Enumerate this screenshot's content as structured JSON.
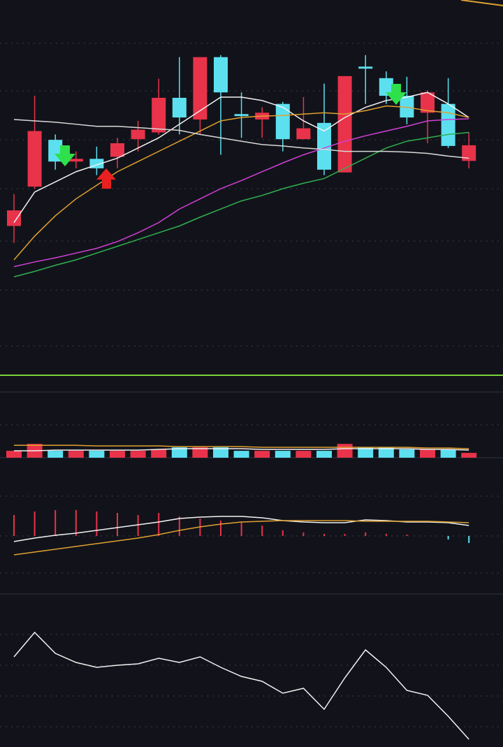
{
  "chart_data": [
    {
      "type": "candlestick",
      "ylim": [
        0,
        540
      ],
      "up_color": "#e8334a",
      "down_color": "#5ce0f0",
      "open": [
        215,
        273,
        342,
        310,
        314,
        317,
        343,
        353,
        404,
        372,
        464,
        380,
        372,
        395,
        343,
        367,
        294,
        450,
        433,
        407,
        382,
        395,
        311
      ],
      "high": [
        262,
        407,
        350,
        325,
        332,
        345,
        370,
        432,
        464,
        464,
        467,
        412,
        390,
        398,
        405,
        425,
        436,
        467,
        443,
        435,
        415,
        433,
        353
      ],
      "low": [
        190,
        270,
        298,
        300,
        290,
        300,
        325,
        350,
        350,
        350,
        320,
        345,
        345,
        325,
        343,
        290,
        294,
        395,
        395,
        365,
        337,
        330,
        300
      ],
      "close": [
        238,
        355,
        310,
        314,
        300,
        337,
        357,
        404,
        375,
        464,
        412,
        377,
        382,
        343,
        359,
        298,
        436,
        447,
        407,
        375,
        412,
        333,
        334
      ],
      "lines": [
        {
          "color": "#f2f2f2",
          "values": [
            220,
            265,
            280,
            295,
            305,
            315,
            330,
            345,
            365,
            385,
            405,
            405,
            400,
            390,
            370,
            355,
            375,
            390,
            400,
            405,
            412,
            395,
            375
          ]
        },
        {
          "color": "#e0a030",
          "values": [
            165,
            200,
            230,
            255,
            275,
            295,
            310,
            325,
            340,
            355,
            370,
            375,
            377,
            378,
            380,
            382,
            380,
            385,
            392,
            390,
            385,
            382,
            375
          ]
        },
        {
          "color": "#d040d8",
          "values": [
            155,
            162,
            168,
            175,
            182,
            192,
            205,
            220,
            240,
            255,
            270,
            282,
            295,
            308,
            320,
            330,
            340,
            348,
            355,
            362,
            370,
            372,
            373
          ]
        },
        {
          "color": "#30b050",
          "values": [
            140,
            148,
            157,
            165,
            175,
            185,
            195,
            205,
            215,
            228,
            240,
            252,
            260,
            270,
            278,
            285,
            300,
            315,
            330,
            340,
            345,
            350,
            353
          ]
        },
        {
          "color": "#d8d8d8",
          "values": [
            372,
            370,
            368,
            365,
            362,
            362,
            360,
            358,
            356,
            350,
            345,
            340,
            335,
            333,
            330,
            328,
            325,
            325,
            325,
            324,
            322,
            318,
            315
          ]
        }
      ]
    },
    {
      "type": "bar",
      "ylim": [
        0,
        95
      ],
      "values": [
        10,
        20,
        10,
        10,
        10,
        10,
        10,
        12,
        15,
        15,
        15,
        10,
        10,
        10,
        10,
        10,
        20,
        15,
        15,
        12,
        12,
        12,
        7
      ],
      "colors": [
        "#e8334a",
        "#e8334a",
        "#5ce0f0",
        "#e8334a",
        "#5ce0f0",
        "#e8334a",
        "#e8334a",
        "#e8334a",
        "#5ce0f0",
        "#e8334a",
        "#5ce0f0",
        "#5ce0f0",
        "#e8334a",
        "#5ce0f0",
        "#e8334a",
        "#5ce0f0",
        "#e8334a",
        "#5ce0f0",
        "#5ce0f0",
        "#5ce0f0",
        "#e8334a",
        "#5ce0f0",
        "#e8334a"
      ],
      "lines": [
        {
          "color": "#e0a030",
          "values": [
            18,
            18,
            18,
            18,
            17,
            17,
            17,
            17,
            16,
            16,
            16,
            16,
            15,
            15,
            15,
            15,
            15,
            15,
            15,
            15,
            14,
            14,
            13
          ]
        },
        {
          "color": "#f2f2f2",
          "values": [
            10,
            10,
            11,
            11,
            11,
            11,
            11,
            12,
            13,
            13,
            13,
            13,
            12,
            12,
            12,
            12,
            13,
            13,
            13,
            13,
            12,
            12,
            11
          ]
        }
      ]
    },
    {
      "type": "histogram-lines",
      "ylim": [
        -83,
        112
      ],
      "up_color": "#e8334a",
      "down_color": "#5ce0f0",
      "values": [
        30,
        35,
        37,
        37,
        35,
        33,
        30,
        33,
        28,
        25,
        22,
        20,
        15,
        8,
        5,
        3,
        3,
        5,
        3,
        2,
        0,
        -5,
        -10
      ],
      "lines": [
        {
          "color": "#f2f2f2",
          "values": [
            -8,
            -3,
            1,
            4,
            8,
            12,
            16,
            20,
            25,
            27,
            28,
            28,
            26,
            22,
            20,
            19,
            19,
            23,
            22,
            20,
            20,
            19,
            15
          ]
        },
        {
          "color": "#e0a030",
          "values": [
            -27,
            -23,
            -19,
            -15,
            -11,
            -7,
            -3,
            2,
            8,
            13,
            17,
            20,
            21,
            22,
            22,
            22,
            22,
            21,
            21,
            21,
            21,
            20,
            19
          ]
        }
      ]
    },
    {
      "type": "line",
      "ylim": [
        0,
        219
      ],
      "color": "#f2f2f2",
      "values": [
        129,
        164,
        134,
        121,
        114,
        117,
        119,
        127,
        121,
        129,
        114,
        101,
        94,
        77,
        84,
        54,
        99,
        139,
        114,
        81,
        74,
        44,
        11
      ]
    }
  ]
}
